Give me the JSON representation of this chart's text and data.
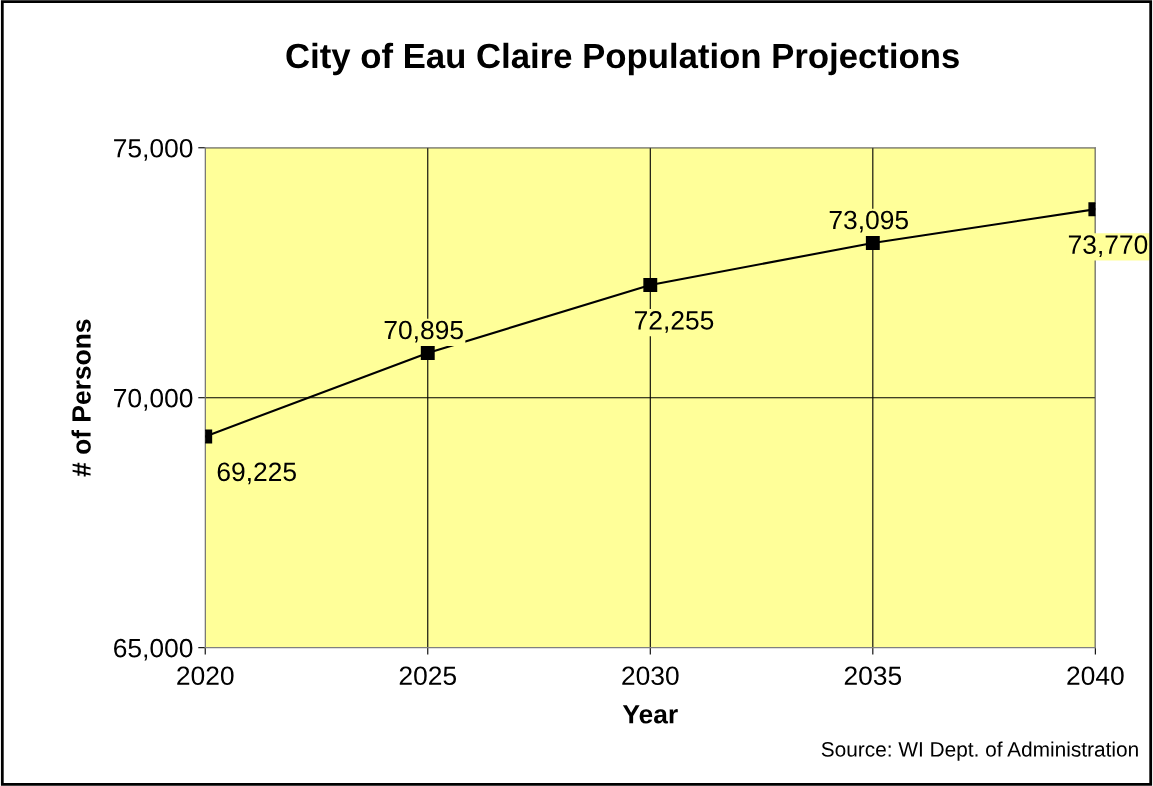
{
  "chart_data": {
    "type": "line",
    "title": "City of Eau Claire Population Projections",
    "xlabel": "Year",
    "ylabel": "# of Persons",
    "x": [
      2020,
      2025,
      2030,
      2035,
      2040
    ],
    "series": [
      {
        "color": "#000000",
        "values": [
          69225,
          70895,
          72255,
          73095,
          73770
        ],
        "value_labels": [
          "69,225",
          "70,895",
          "72,255",
          "73,095",
          "73,770"
        ]
      }
    ],
    "xlim": [
      2020,
      2040
    ],
    "xticks": [
      2020,
      2025,
      2030,
      2035,
      2040
    ],
    "ylim": [
      65000,
      75000
    ],
    "yticks": [
      {
        "value": 65000,
        "label": "65,000"
      },
      {
        "value": 70000,
        "label": "70,000"
      },
      {
        "value": 75000,
        "label": "75,000"
      }
    ],
    "grid": true,
    "marker": "square",
    "line_style": "solid",
    "legend": false,
    "annotations": [
      "Source: WI Dept. of Administration"
    ]
  }
}
